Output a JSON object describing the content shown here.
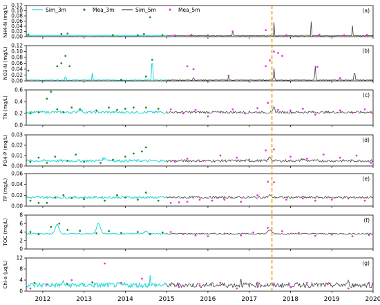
{
  "chart_data": {
    "type": "line",
    "x_axis": {
      "range": [
        2011.6,
        2020.0
      ],
      "ticks": [
        "2012",
        "2013",
        "2014",
        "2015",
        "2016",
        "2017",
        "2018",
        "2019",
        "2020"
      ],
      "tick_values": [
        2012,
        2013,
        2014,
        2015,
        2016,
        2017,
        2018,
        2019,
        2020
      ]
    },
    "split_year": 2015,
    "marker_line": {
      "x": 2017.55,
      "color": "#f5a21d",
      "style": "dashed"
    },
    "legend": {
      "placement": "top-left",
      "entries": [
        {
          "label": "Sim_3m",
          "kind": "line",
          "color": "#1ed4d4"
        },
        {
          "label": "Mea_3m",
          "kind": "point",
          "color": "#1f8f1f"
        },
        {
          "label": "Sim_5m",
          "kind": "line",
          "color": "#404040"
        },
        {
          "label": "Mea_5m",
          "kind": "point",
          "color": "#e23ae2"
        }
      ]
    },
    "panels": [
      {
        "letter": "(a)",
        "ylabel": "NH4-N (mg/L)",
        "ylim": [
          0,
          0.12
        ],
        "yticks": [
          "0.00",
          "0.02",
          "0.04",
          "0.06",
          "0.08",
          "0.10",
          "0.12"
        ],
        "tick_values": [
          0,
          0.02,
          0.04,
          0.06,
          0.08,
          0.1,
          0.12
        ],
        "base": 0.004,
        "peaks": [
          [
            2012.55,
            0.028,
            0.012
          ],
          [
            2014.55,
            0.082,
            0.015
          ],
          [
            2015.55,
            0.028,
            0.02
          ],
          [
            2016.6,
            0.02,
            0.02
          ],
          [
            2016.75,
            0.02,
            0.02
          ],
          [
            2017.6,
            0.05,
            0.025
          ],
          [
            2018.5,
            0.055,
            0.025
          ],
          [
            2019.5,
            0.04,
            0.025
          ]
        ],
        "noise": 0.0015,
        "mea_3m": [
          [
            2011.65,
            0.008
          ],
          [
            2012.45,
            0.01
          ],
          [
            2012.6,
            0.012
          ],
          [
            2013.7,
            0.006
          ],
          [
            2014.3,
            0.006
          ],
          [
            2014.45,
            0.01
          ],
          [
            2014.6,
            0.075
          ],
          [
            2014.9,
            0.006
          ]
        ],
        "mea_5m": [
          [
            2015.2,
            0.005
          ],
          [
            2015.6,
            0.007
          ],
          [
            2016.0,
            0.006
          ],
          [
            2016.6,
            0.02
          ],
          [
            2017.4,
            0.025
          ],
          [
            2017.9,
            0.006
          ],
          [
            2018.7,
            0.008
          ],
          [
            2019.3,
            0.006
          ],
          [
            2019.85,
            0.007
          ]
        ]
      },
      {
        "letter": "(b)",
        "ylabel": "NO3-N (mg/L)",
        "ylim": [
          0,
          0.12
        ],
        "yticks": [
          "0.00",
          "0.02",
          "0.04",
          "0.06",
          "0.08",
          "0.10",
          "0.12"
        ],
        "tick_values": [
          0,
          0.02,
          0.04,
          0.06,
          0.08,
          0.1,
          0.12
        ],
        "base": 0.003,
        "peaks": [
          [
            2012.55,
            0.02,
            0.05
          ],
          [
            2013.2,
            0.025,
            0.04
          ],
          [
            2014.65,
            0.085,
            0.06
          ],
          [
            2015.65,
            0.02,
            0.04
          ],
          [
            2016.5,
            0.015,
            0.04
          ],
          [
            2017.6,
            0.04,
            0.06
          ],
          [
            2018.6,
            0.05,
            0.06
          ],
          [
            2019.55,
            0.04,
            0.05
          ]
        ],
        "noise": 0.0015,
        "mea_3m": [
          [
            2011.65,
            0.035
          ],
          [
            2012.35,
            0.05
          ],
          [
            2012.45,
            0.06
          ],
          [
            2012.55,
            0.085
          ],
          [
            2012.65,
            0.05
          ],
          [
            2013.9,
            0.004
          ],
          [
            2014.5,
            0.015
          ],
          [
            2014.65,
            0.072
          ]
        ],
        "mea_5m": [
          [
            2015.5,
            0.05
          ],
          [
            2015.65,
            0.04
          ],
          [
            2016.5,
            0.018
          ],
          [
            2017.4,
            0.05
          ],
          [
            2017.5,
            0.07
          ],
          [
            2017.6,
            0.1
          ],
          [
            2017.7,
            0.095
          ],
          [
            2017.8,
            0.085
          ],
          [
            2018.65,
            0.048
          ],
          [
            2019.2,
            0.01
          ]
        ]
      },
      {
        "letter": "(c)",
        "ylabel": "TN (mg/L)",
        "ylim": [
          0,
          0.6
        ],
        "yticks": [
          "0.0",
          "0.2",
          "0.4",
          "0.6"
        ],
        "tick_values": [
          0,
          0.2,
          0.4,
          0.6
        ],
        "base": 0.22,
        "peaks": [
          [
            2012.9,
            0.04,
            0.25
          ],
          [
            2017.6,
            0.08,
            0.12
          ]
        ],
        "noise": 0.02,
        "mea_3m": [
          [
            2011.7,
            0.2
          ],
          [
            2011.9,
            0.22
          ],
          [
            2012.1,
            0.45
          ],
          [
            2012.2,
            0.57
          ],
          [
            2012.35,
            0.27
          ],
          [
            2012.5,
            0.22
          ],
          [
            2012.7,
            0.3
          ],
          [
            2012.9,
            0.27
          ],
          [
            2013.3,
            0.25
          ],
          [
            2013.6,
            0.3
          ],
          [
            2013.8,
            0.26
          ],
          [
            2014.0,
            0.28
          ],
          [
            2014.2,
            0.3
          ],
          [
            2014.5,
            0.3
          ],
          [
            2014.8,
            0.28
          ]
        ],
        "mea_5m": [
          [
            2015.1,
            0.27
          ],
          [
            2015.4,
            0.2
          ],
          [
            2015.7,
            0.26
          ],
          [
            2016.0,
            0.15
          ],
          [
            2016.3,
            0.22
          ],
          [
            2016.6,
            0.27
          ],
          [
            2016.9,
            0.2
          ],
          [
            2017.2,
            0.29
          ],
          [
            2017.45,
            0.38
          ],
          [
            2017.7,
            0.26
          ],
          [
            2018.0,
            0.25
          ],
          [
            2018.3,
            0.28
          ],
          [
            2018.6,
            0.18
          ],
          [
            2018.9,
            0.22
          ],
          [
            2019.2,
            0.25
          ],
          [
            2019.5,
            0.21
          ],
          [
            2019.8,
            0.27
          ],
          [
            2019.95,
            0.22
          ]
        ]
      },
      {
        "letter": "(d)",
        "ylabel": "PO4-P (mg/L)",
        "ylim": [
          0,
          0.03
        ],
        "yticks": [
          "0.00",
          "0.01",
          "0.02",
          "0.03"
        ],
        "tick_values": [
          0,
          0.01,
          0.02,
          0.03
        ],
        "base": 0.005,
        "peaks": [
          [
            2013.5,
            0.002,
            0.4
          ],
          [
            2017.5,
            0.004,
            0.15
          ],
          [
            2018.3,
            0.002,
            0.2
          ]
        ],
        "noise": 0.0012,
        "mea_3m": [
          [
            2011.7,
            0.004
          ],
          [
            2011.9,
            0.008
          ],
          [
            2012.1,
            0.003
          ],
          [
            2012.3,
            0.009
          ],
          [
            2012.6,
            0.005
          ],
          [
            2012.8,
            0.011
          ],
          [
            2013.0,
            0.004
          ],
          [
            2013.4,
            0.003
          ],
          [
            2013.7,
            0.006
          ],
          [
            2014.0,
            0.009
          ],
          [
            2014.2,
            0.012
          ],
          [
            2014.4,
            0.014
          ],
          [
            2014.5,
            0.018
          ]
        ],
        "mea_5m": [
          [
            2015.2,
            0.004
          ],
          [
            2015.5,
            0.007
          ],
          [
            2015.9,
            0.005
          ],
          [
            2016.3,
            0.01
          ],
          [
            2016.7,
            0.008
          ],
          [
            2017.0,
            0.006
          ],
          [
            2017.4,
            0.015
          ],
          [
            2017.6,
            0.016
          ],
          [
            2018.0,
            0.009
          ],
          [
            2018.4,
            0.007
          ],
          [
            2018.8,
            0.011
          ],
          [
            2019.2,
            0.008
          ],
          [
            2019.6,
            0.01
          ],
          [
            2019.95,
            0.003
          ]
        ]
      },
      {
        "letter": "(e)",
        "ylabel": "TP (mg/L)",
        "ylim": [
          0,
          0.06
        ],
        "yticks": [
          "0.00",
          "0.02",
          "0.04",
          "0.06"
        ],
        "tick_values": [
          0,
          0.02,
          0.04,
          0.06
        ],
        "base": 0.016,
        "peaks": [
          [
            2017.5,
            0.004,
            0.2
          ]
        ],
        "noise": 0.002,
        "mea_3m": [
          [
            2011.7,
            0.01
          ],
          [
            2011.9,
            0.006
          ],
          [
            2012.1,
            0.006
          ],
          [
            2012.3,
            0.016
          ],
          [
            2012.5,
            0.02
          ],
          [
            2012.7,
            0.015
          ],
          [
            2013.0,
            0.013
          ],
          [
            2013.5,
            0.01
          ],
          [
            2013.8,
            0.02
          ],
          [
            2014.0,
            0.016
          ],
          [
            2014.3,
            0.012
          ],
          [
            2014.5,
            0.025
          ],
          [
            2014.8,
            0.01
          ]
        ],
        "mea_5m": [
          [
            2015.1,
            0.006
          ],
          [
            2015.3,
            0.007
          ],
          [
            2015.5,
            0.008
          ],
          [
            2015.8,
            0.012
          ],
          [
            2016.1,
            0.01
          ],
          [
            2016.4,
            0.012
          ],
          [
            2016.8,
            0.008
          ],
          [
            2017.2,
            0.02
          ],
          [
            2017.45,
            0.045
          ],
          [
            2017.6,
            0.044
          ],
          [
            2017.9,
            0.012
          ],
          [
            2018.3,
            0.014
          ],
          [
            2018.6,
            0.01
          ],
          [
            2019.0,
            0.012
          ],
          [
            2019.4,
            0.014
          ],
          [
            2019.8,
            0.01
          ]
        ]
      },
      {
        "letter": "(f)",
        "ylabel": "TOC (mg/L)",
        "ylim": [
          0,
          8
        ],
        "yticks": [
          "0",
          "2",
          "4",
          "6",
          "8"
        ],
        "tick_values": [
          0,
          2,
          4,
          6,
          8
        ],
        "base": 3.6,
        "peaks": [
          [
            2012.35,
            2.2,
            0.25
          ],
          [
            2013.35,
            2.5,
            0.25
          ],
          [
            2014.5,
            0.6,
            0.2
          ],
          [
            2017.5,
            0.9,
            0.25
          ]
        ],
        "noise": 0.15,
        "mea_3m": [
          [
            2011.7,
            4.0
          ],
          [
            2011.9,
            3.5
          ],
          [
            2012.2,
            5.2
          ],
          [
            2012.4,
            6.0
          ],
          [
            2012.6,
            4.5
          ],
          [
            2012.9,
            4.3
          ],
          [
            2013.3,
            3.7
          ],
          [
            2013.6,
            4.2
          ],
          [
            2013.9,
            3.8
          ],
          [
            2014.3,
            4.0
          ],
          [
            2014.6,
            3.5
          ],
          [
            2014.9,
            3.9
          ]
        ],
        "mea_5m": [
          [
            2015.1,
            4.0
          ],
          [
            2015.4,
            3.5
          ],
          [
            2015.7,
            3.2
          ],
          [
            2016.0,
            3.0
          ],
          [
            2016.4,
            3.6
          ],
          [
            2016.8,
            3.2
          ],
          [
            2017.1,
            3.9
          ],
          [
            2017.45,
            5.0
          ],
          [
            2017.8,
            4.2
          ],
          [
            2018.2,
            3.8
          ],
          [
            2018.6,
            3.1
          ],
          [
            2019.0,
            3.4
          ],
          [
            2019.5,
            3.0
          ],
          [
            2019.9,
            3.3
          ]
        ]
      },
      {
        "letter": "(g)",
        "ylabel": "Chl-a (µg/L)",
        "ylim": [
          0,
          12
        ],
        "yticks": [
          "0",
          "4",
          "8",
          "12"
        ],
        "tick_values": [
          0,
          4,
          8,
          12
        ],
        "base": 2.2,
        "peaks": [
          [
            2012.5,
            1.5,
            0.1
          ],
          [
            2014.6,
            4.0,
            0.05
          ],
          [
            2016.8,
            2.8,
            0.05
          ],
          [
            2019.4,
            2.5,
            0.05
          ]
        ],
        "noise": 0.9,
        "mea_3m": [
          [
            2011.8,
            3.0
          ],
          [
            2012.6,
            2.5
          ],
          [
            2013.2,
            3.2
          ]
        ],
        "mea_5m": [
          [
            2011.7,
            1.0
          ],
          [
            2012.1,
            2.5
          ],
          [
            2012.7,
            4.0
          ],
          [
            2013.5,
            10.0
          ],
          [
            2013.9,
            3.0
          ],
          [
            2014.4,
            4.5
          ],
          [
            2015.3,
            1.5
          ],
          [
            2015.8,
            2.0
          ],
          [
            2016.3,
            3.0
          ],
          [
            2016.7,
            1.0
          ],
          [
            2017.2,
            3.0
          ],
          [
            2017.6,
            2.5
          ],
          [
            2018.0,
            1.5
          ],
          [
            2018.4,
            3.0
          ],
          [
            2018.9,
            2.5
          ],
          [
            2019.4,
            1.0
          ],
          [
            2019.9,
            3.0
          ]
        ]
      }
    ]
  }
}
